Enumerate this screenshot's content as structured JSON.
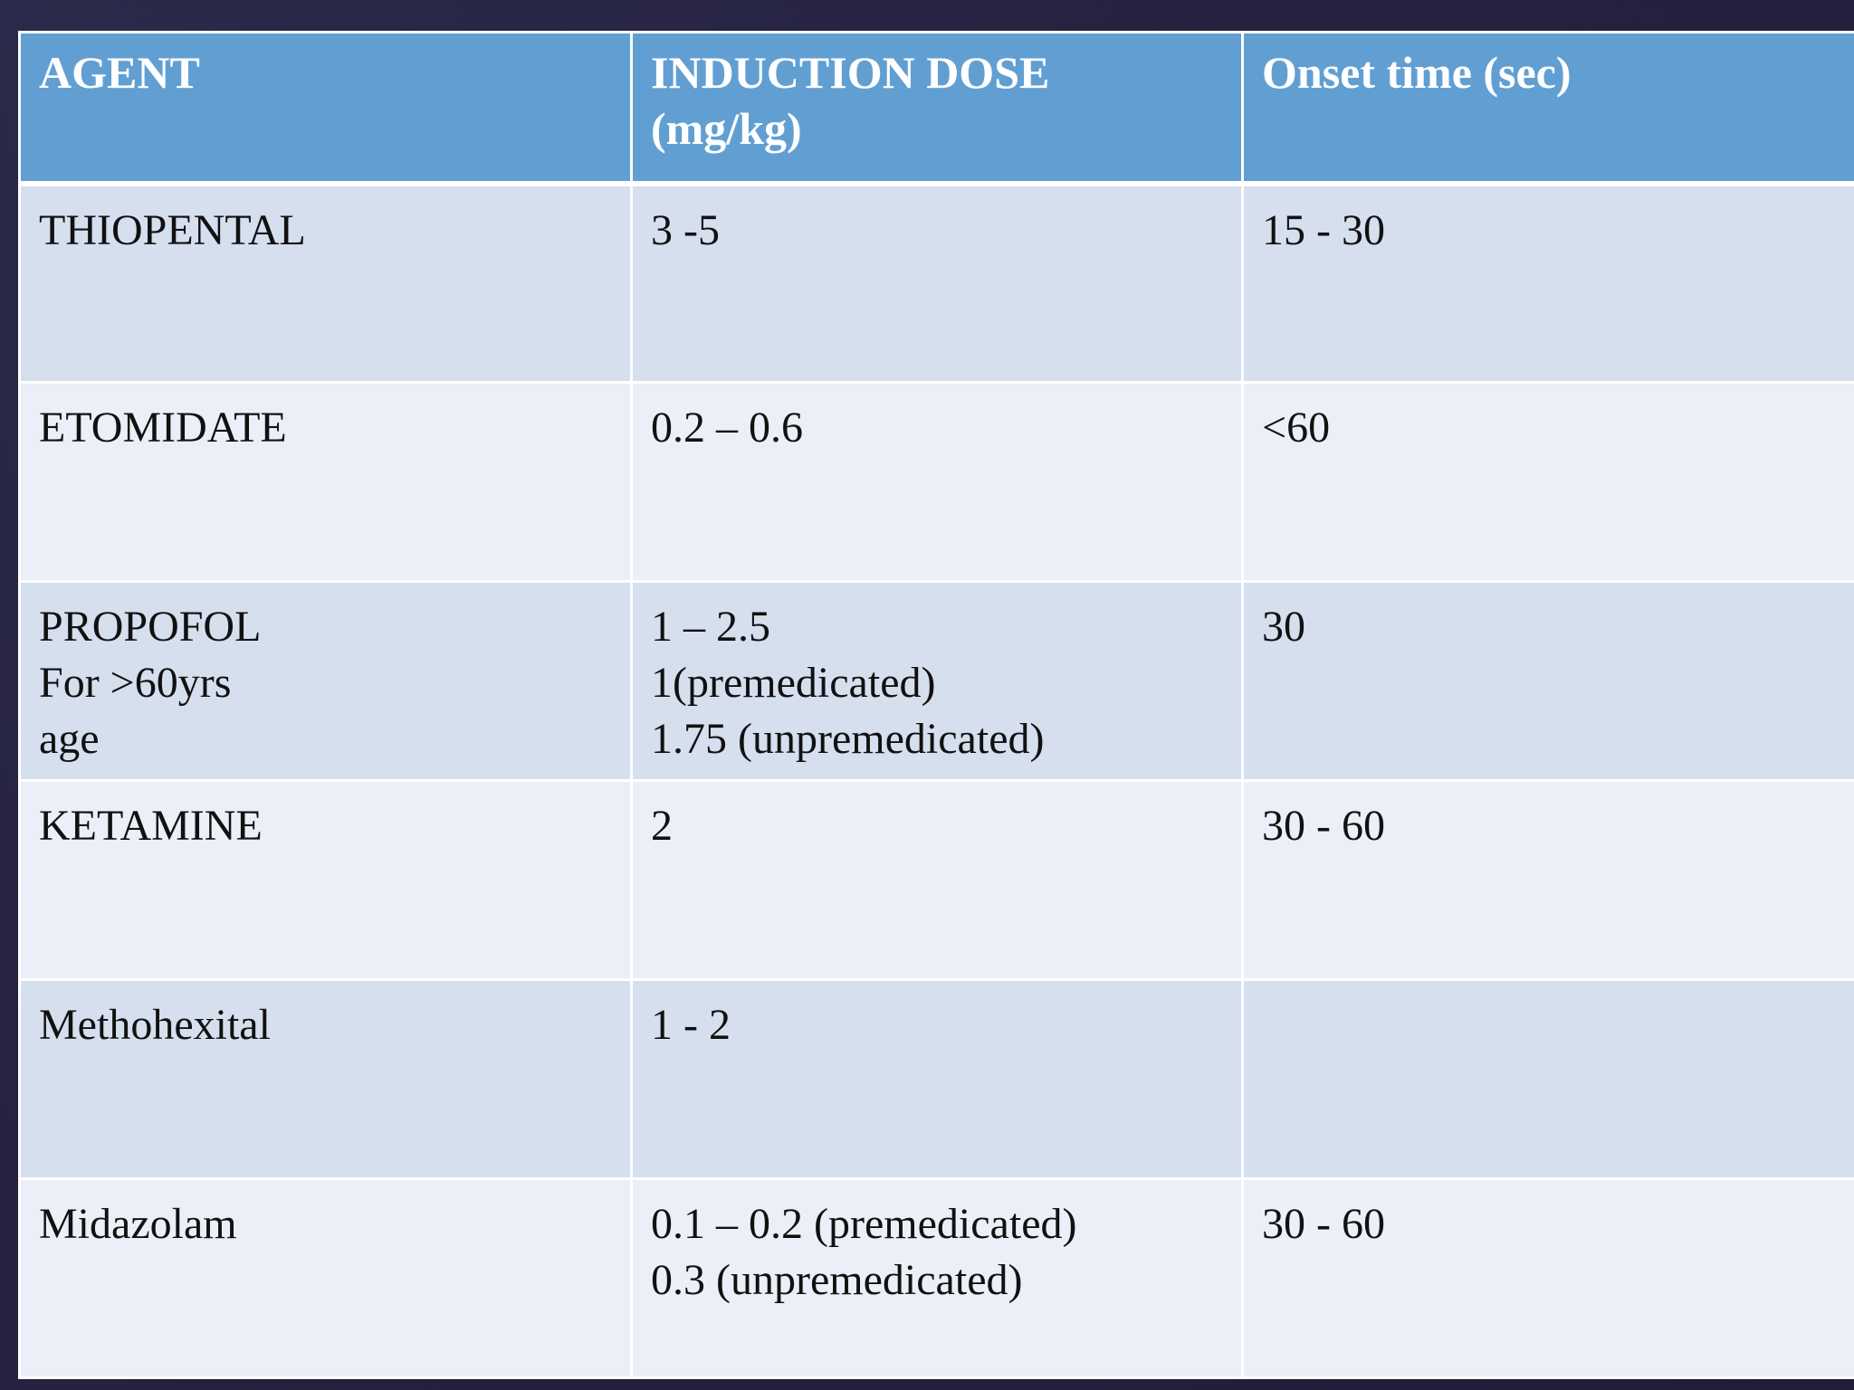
{
  "table": {
    "headers": [
      "AGENT",
      "INDUCTION DOSE\n(mg/kg)",
      "Onset time (sec)"
    ],
    "rows": [
      [
        "THIOPENTAL",
        "3 -5",
        "15 - 30"
      ],
      [
        "ETOMIDATE",
        "0.2 – 0.6",
        "<60"
      ],
      [
        "PROPOFOL\n                      For >60yrs\nage",
        "1 – 2.5\n1(premedicated)\n1.75 (unpremedicated)",
        "30"
      ],
      [
        "KETAMINE",
        "2",
        "30 - 60"
      ],
      [
        "Methohexital",
        "1 - 2",
        ""
      ],
      [
        "Midazolam",
        "0.1 – 0.2 (premedicated)\n0.3 (unpremedicated)",
        "30 - 60"
      ]
    ]
  },
  "colors": {
    "background": "#27254a",
    "header_fill": "#619fd3",
    "row_odd_fill": "#d5dfee",
    "row_even_fill": "#ebeff7"
  }
}
